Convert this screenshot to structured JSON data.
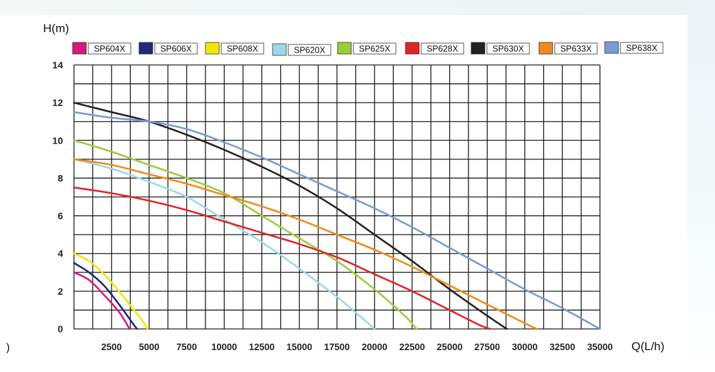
{
  "chart_data": {
    "type": "line",
    "title": "",
    "ylabel": "H(m)",
    "xlabel": "Q(L/h)",
    "left_edge_text": ")",
    "xlim": [
      0,
      35000
    ],
    "ylim": [
      0,
      14
    ],
    "x_ticks": [
      2500,
      5000,
      7500,
      10000,
      12500,
      15000,
      17500,
      20000,
      22500,
      25000,
      27500,
      30000,
      32500,
      35000
    ],
    "x_tick_labels": [
      "2500",
      "5000",
      "7500",
      "10000",
      "12500",
      "15000",
      "17500",
      "20000",
      "22500",
      "25000",
      "27500",
      "30000",
      "32500",
      "35000"
    ],
    "y_ticks": [
      0,
      2,
      4,
      6,
      8,
      10,
      12,
      14
    ],
    "y_tick_labels": [
      "0",
      "2",
      "4",
      "6",
      "8",
      "10",
      "12",
      "14"
    ],
    "grid": true,
    "legend_position": "top",
    "series": [
      {
        "name": "SP604X",
        "color": "#d6197e",
        "x": [
          0,
          1000,
          2000,
          3000,
          3700
        ],
        "y": [
          3.0,
          2.6,
          1.8,
          0.9,
          0.0
        ]
      },
      {
        "name": "SP606X",
        "color": "#1f2b7a",
        "x": [
          0,
          1000,
          2000,
          3000,
          4000,
          4200
        ],
        "y": [
          3.5,
          3.0,
          2.3,
          1.3,
          0.2,
          0.0
        ]
      },
      {
        "name": "SP608X",
        "color": "#f2e600",
        "x": [
          0,
          1000,
          2000,
          3000,
          4000,
          4500,
          4900
        ],
        "y": [
          4.0,
          3.6,
          2.9,
          2.0,
          1.0,
          0.5,
          0.0
        ]
      },
      {
        "name": "SP620X",
        "color": "#9ad8ea",
        "x": [
          0,
          2500,
          5000,
          7500,
          10000,
          12500,
          15000,
          17500,
          19000,
          20000
        ],
        "y": [
          9.0,
          8.5,
          7.8,
          7.0,
          5.8,
          4.6,
          3.2,
          1.7,
          0.7,
          0.0
        ]
      },
      {
        "name": "SP625X",
        "color": "#9ccc3c",
        "x": [
          0,
          2500,
          5000,
          7500,
          10000,
          12500,
          15000,
          17500,
          20000,
          22000,
          22800
        ],
        "y": [
          10.0,
          9.4,
          8.7,
          8.0,
          7.2,
          6.0,
          4.8,
          3.6,
          2.1,
          0.7,
          0.0
        ]
      },
      {
        "name": "SP628X",
        "color": "#e02424",
        "x": [
          0,
          2500,
          5000,
          7500,
          10000,
          12500,
          15000,
          17500,
          20000,
          22500,
          25000,
          27000,
          27700
        ],
        "y": [
          7.5,
          7.2,
          6.8,
          6.3,
          5.7,
          5.1,
          4.5,
          3.8,
          2.9,
          2.0,
          1.0,
          0.2,
          0.0
        ]
      },
      {
        "name": "SP630X",
        "color": "#222222",
        "x": [
          0,
          2500,
          5000,
          7500,
          10000,
          12500,
          15000,
          17500,
          20000,
          22500,
          25000,
          27500,
          28800
        ],
        "y": [
          12.0,
          11.5,
          11.0,
          10.3,
          9.5,
          8.6,
          7.6,
          6.4,
          5.0,
          3.6,
          2.1,
          0.7,
          0.0
        ]
      },
      {
        "name": "SP633X",
        "color": "#f08a1c",
        "x": [
          0,
          2500,
          5000,
          7500,
          10000,
          12500,
          15000,
          17500,
          20000,
          22500,
          25000,
          27500,
          30000,
          30800
        ],
        "y": [
          9.0,
          8.7,
          8.2,
          7.7,
          7.1,
          6.5,
          5.8,
          5.0,
          4.2,
          3.3,
          2.3,
          1.3,
          0.3,
          0.0
        ]
      },
      {
        "name": "SP638X",
        "color": "#7a9ad4",
        "x": [
          0,
          2500,
          5000,
          7500,
          10000,
          12500,
          15000,
          17500,
          20000,
          22500,
          25000,
          27500,
          30000,
          32500,
          35000
        ],
        "y": [
          11.5,
          11.2,
          11.0,
          10.6,
          9.9,
          9.1,
          8.2,
          7.3,
          6.4,
          5.4,
          4.3,
          3.2,
          2.1,
          1.1,
          0.0
        ]
      }
    ]
  }
}
